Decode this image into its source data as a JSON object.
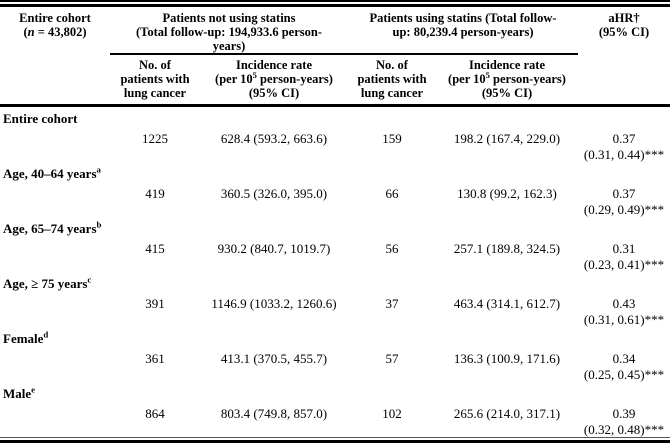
{
  "colors": {
    "background": "#ffffff",
    "text": "#000000",
    "rule": "#000000"
  },
  "header": {
    "cohort": {
      "line1": "Entire cohort",
      "paren_open": "(",
      "n_symbol": "n",
      "n_rest": " = 43,802)"
    },
    "group_no_statins": {
      "line1": "Patients not using statins",
      "line2": "(Total follow-up: 194,933.6 person-",
      "line3": "years)"
    },
    "group_statins": {
      "line1": "Patients using statins (Total follow-",
      "line2": "up: 80,239.4 person-years)"
    },
    "ahr": {
      "line1": "aHR†",
      "line2": "(95% CI)"
    },
    "sub_count": {
      "line1": "No. of",
      "line2": "patients with",
      "line3": "lung cancer"
    },
    "sub_incidence": {
      "line1": "Incidence rate",
      "line2_pre": "(per 10",
      "line2_sup": "5",
      "line2_post": " person-years)",
      "line3": "(95% CI)"
    }
  },
  "rows": [
    {
      "label": "Entire cohort",
      "sup": "",
      "no_statin_n": "1225",
      "no_statin_ir": "628.4 (593.2, 663.6)",
      "statin_n": "159",
      "statin_ir": "198.2 (167.4, 229.0)",
      "ahr": "0.37",
      "ahr_ci": "(0.31, 0.44)***"
    },
    {
      "label": "Age, 40–64 years",
      "sup": "a",
      "no_statin_n": "419",
      "no_statin_ir": "360.5 (326.0, 395.0)",
      "statin_n": "66",
      "statin_ir": "130.8 (99.2, 162.3)",
      "ahr": "0.37",
      "ahr_ci": "(0.29, 0.49)***"
    },
    {
      "label": "Age, 65–74 years",
      "sup": "b",
      "no_statin_n": "415",
      "no_statin_ir": "930.2 (840.7, 1019.7)",
      "statin_n": "56",
      "statin_ir": "257.1 (189.8, 324.5)",
      "ahr": "0.31",
      "ahr_ci": "(0.23, 0.41)***"
    },
    {
      "label": "Age, ≥ 75 years",
      "sup": "c",
      "no_statin_n": "391",
      "no_statin_ir": "1146.9 (1033.2, 1260.6)",
      "statin_n": "37",
      "statin_ir": "463.4 (314.1, 612.7)",
      "ahr": "0.43",
      "ahr_ci": "(0.31, 0.61)***"
    },
    {
      "label": "Female",
      "sup": "d",
      "no_statin_n": "361",
      "no_statin_ir": "413.1 (370.5, 455.7)",
      "statin_n": "57",
      "statin_ir": "136.3 (100.9, 171.6)",
      "ahr": "0.34",
      "ahr_ci": "(0.25, 0.45)***"
    },
    {
      "label": "Male",
      "sup": "e",
      "no_statin_n": "864",
      "no_statin_ir": "803.4 (749.8, 857.0)",
      "statin_n": "102",
      "statin_ir": "265.6 (214.0, 317.1)",
      "ahr": "0.39",
      "ahr_ci": "(0.32, 0.48)***"
    }
  ]
}
